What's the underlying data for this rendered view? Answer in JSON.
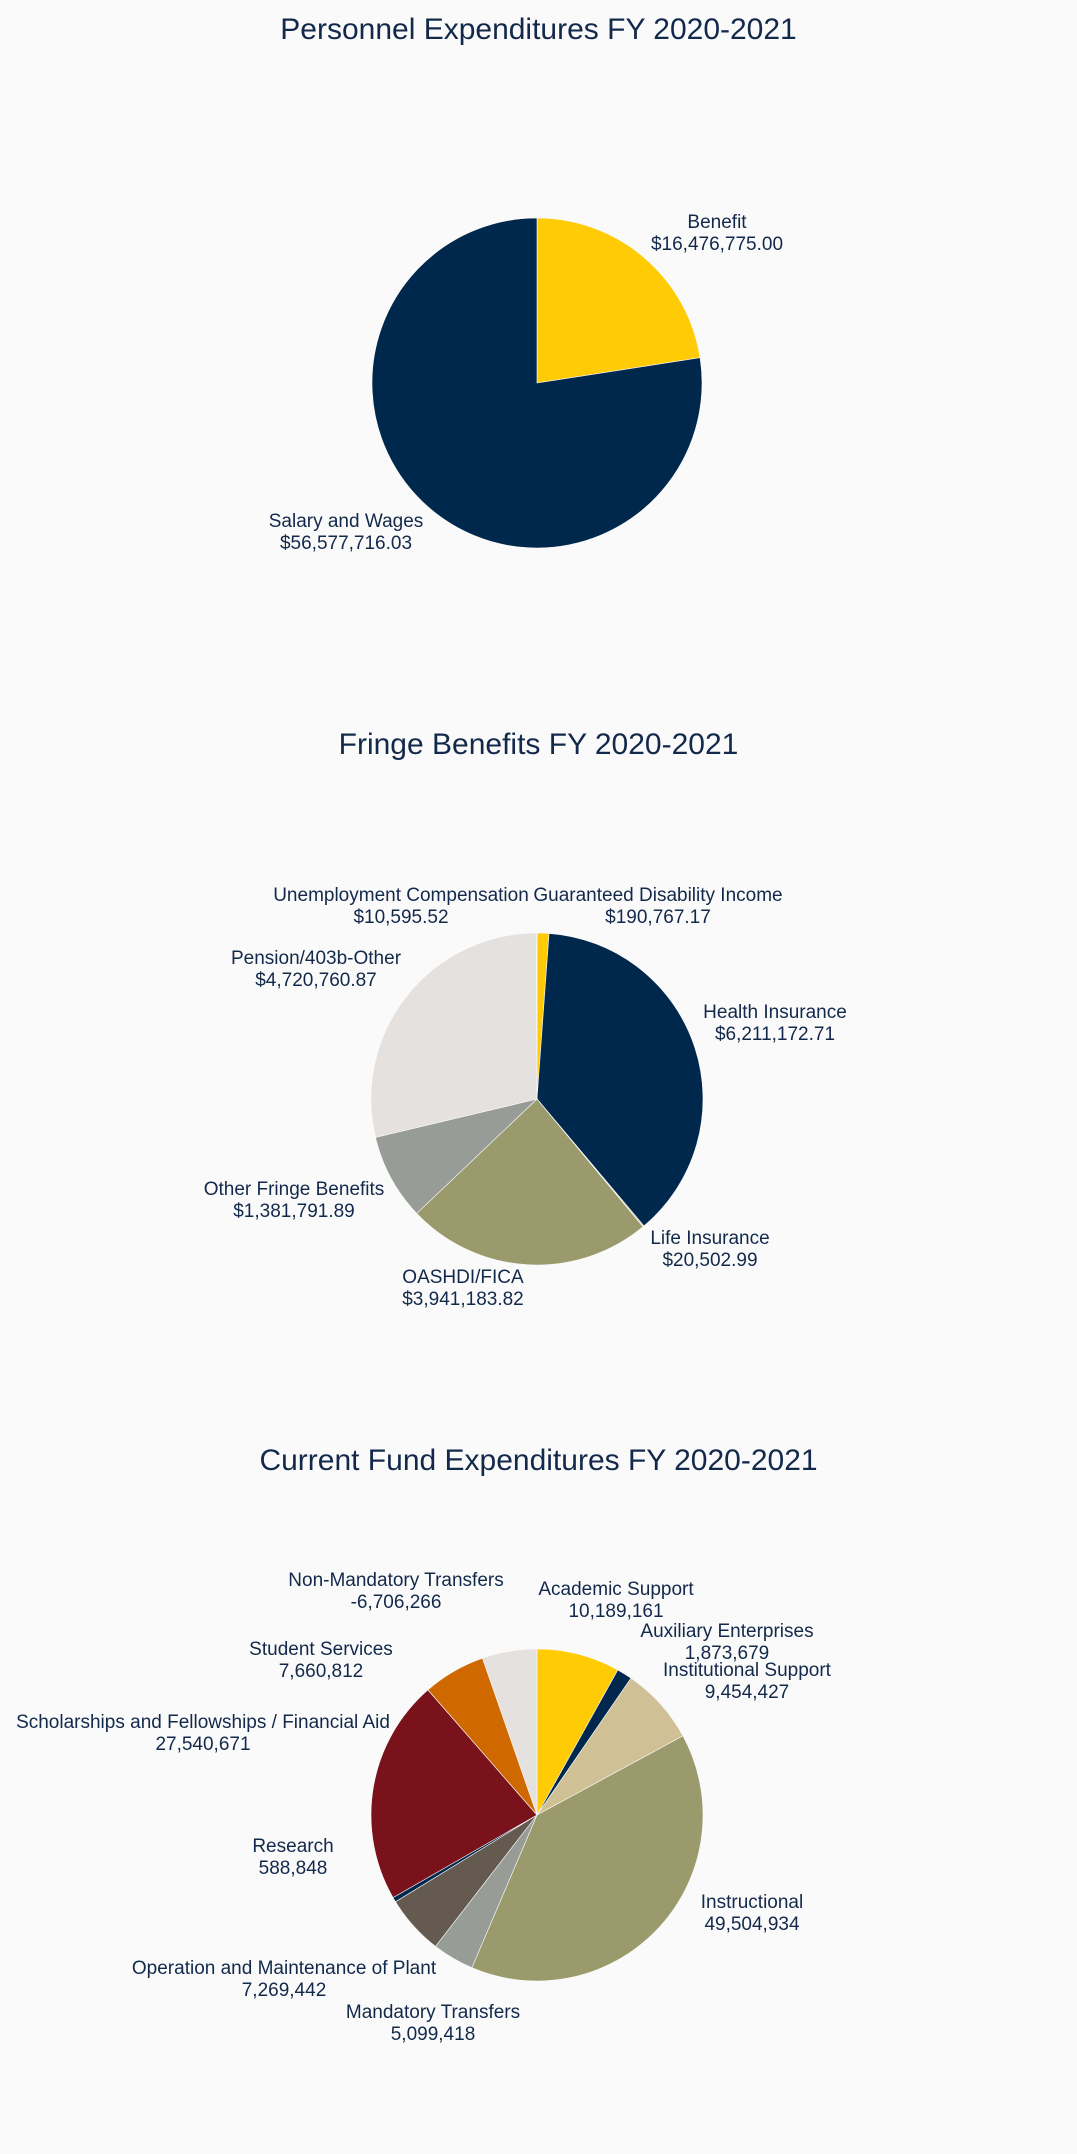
{
  "chart_data": [
    {
      "type": "pie",
      "title": "Personnel Expenditures FY 2020-2021",
      "direction": "clockwise",
      "start": "top",
      "slices": [
        {
          "label": "Benefit",
          "value": 16476775.0,
          "text": "$16,476,775.00",
          "color": "#ffcb05"
        },
        {
          "label": "Salary and Wages",
          "value": 56577716.03,
          "text": "$56,577,716.03",
          "color": "#00274c"
        }
      ]
    },
    {
      "type": "pie",
      "title": "Fringe Benefits FY 2020-2021",
      "direction": "clockwise",
      "start": "top",
      "slices": [
        {
          "label": "Guaranteed Disability Income",
          "value": 190767.17,
          "text": "$190,767.17",
          "color": "#ffcb05"
        },
        {
          "label": "Health Insurance",
          "value": 6211172.71,
          "text": "$6,211,172.71",
          "color": "#00274c"
        },
        {
          "label": "Life Insurance",
          "value": 20502.99,
          "text": "$20,502.99",
          "color": "#cfc096"
        },
        {
          "label": "OASHDI/FICA",
          "value": 3941183.82,
          "text": "$3,941,183.82",
          "color": "#9a9a6c"
        },
        {
          "label": "Other Fringe Benefits",
          "value": 1381791.89,
          "text": "$1,381,791.89",
          "color": "#989c97"
        },
        {
          "label": "Pension/403b-Other",
          "value": 4720760.87,
          "text": "$4,720,760.87",
          "color": "#e5e1de"
        },
        {
          "label": "Unemployment Compensation",
          "value": 10595.52,
          "text": "$10,595.52",
          "color": "#a59a8e"
        }
      ]
    },
    {
      "type": "pie",
      "title": "Current Fund Expenditures FY 2020-2021",
      "direction": "clockwise",
      "start": "top",
      "slices": [
        {
          "label": "Academic Support",
          "value": 10189161,
          "text": "10,189,161",
          "color": "#ffcb05"
        },
        {
          "label": "Auxiliary Enterprises",
          "value": 1873679,
          "text": "1,873,679",
          "color": "#00274c"
        },
        {
          "label": "Institutional Support",
          "value": 9454427,
          "text": "9,454,427",
          "color": "#cfc096"
        },
        {
          "label": "Instructional",
          "value": 49504934,
          "text": "49,504,934",
          "color": "#9a9a6c"
        },
        {
          "label": "Mandatory Transfers",
          "value": 5099418,
          "text": "5,099,418",
          "color": "#989c97"
        },
        {
          "label": "Operation and Maintenance of Plant",
          "value": 7269442,
          "text": "7,269,442",
          "color": "#655a4f"
        },
        {
          "label": "Research",
          "value": 588848,
          "text": "588,848",
          "color": "#00274c"
        },
        {
          "label": "Scholarships and Fellowships / Financial Aid",
          "value": 27540671,
          "text": "27,540,671",
          "color": "#7a121c"
        },
        {
          "label": "Student Services",
          "value": 7660812,
          "text": "7,660,812",
          "color": "#d06800"
        },
        {
          "label": "Non-Mandatory Transfers",
          "value": -6706266,
          "text": "-6,706,266",
          "color": "#e5e1de"
        }
      ]
    }
  ]
}
